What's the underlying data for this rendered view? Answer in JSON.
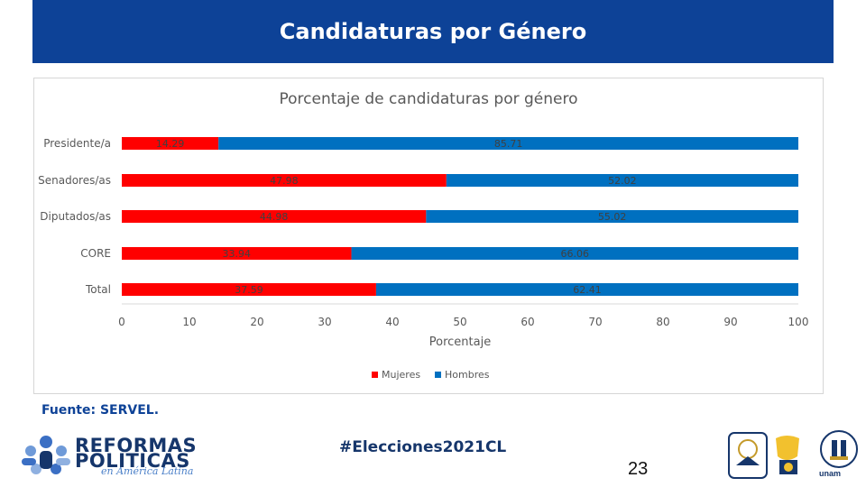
{
  "header": {
    "title": "Candidaturas por Género"
  },
  "chart_data": {
    "type": "bar",
    "orientation": "horizontal",
    "stacked": true,
    "title": "Porcentaje de candidaturas por género",
    "categories": [
      "Presidente/a",
      "Senadores/as",
      "Diputados/as",
      "CORE",
      "Total"
    ],
    "series": [
      {
        "name": "Mujeres",
        "color": "#ff0000",
        "values": [
          14.29,
          47.98,
          44.98,
          33.94,
          37.59
        ]
      },
      {
        "name": "Hombres",
        "color": "#0070c0",
        "values": [
          85.71,
          52.02,
          55.02,
          66.06,
          62.41
        ]
      }
    ],
    "xlabel": "Porcentaje",
    "ylabel": "",
    "xlim": [
      0,
      100
    ],
    "xticks": [
      0,
      10,
      20,
      30,
      40,
      50,
      60,
      70,
      80,
      90,
      100
    ],
    "grid": false,
    "legend_position": "bottom"
  },
  "footer": {
    "source": "Fuente: SERVEL.",
    "hashtag": "#Elecciones2021CL",
    "page_number": "23",
    "logo_line1": "REFORMAS",
    "logo_line2": "POLITICAS",
    "logo_tagline": "en América Latina",
    "unam_label": "unam"
  }
}
